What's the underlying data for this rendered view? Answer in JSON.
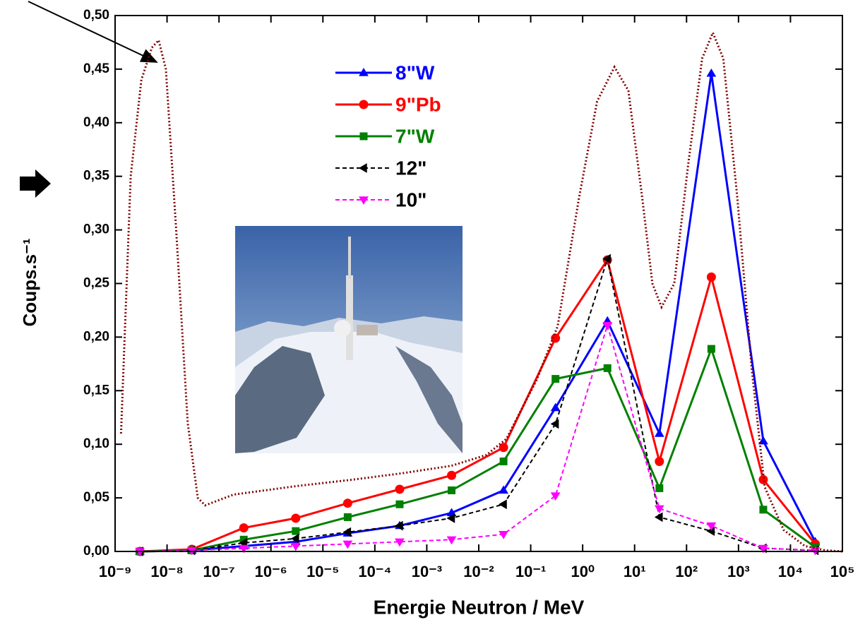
{
  "chart_data": {
    "type": "line",
    "xlabel": "Energie Neutron / MeV",
    "ylabel": "Coups.s⁻¹",
    "log_x": true,
    "xlim": [
      1e-09,
      100000
    ],
    "xticks": [
      {
        "value": 1e-09,
        "label": "10⁻⁹"
      },
      {
        "value": 1e-08,
        "label": "10⁻⁸"
      },
      {
        "value": 1e-07,
        "label": "10⁻⁷"
      },
      {
        "value": 1e-06,
        "label": "10⁻⁶"
      },
      {
        "value": 1e-05,
        "label": "10⁻⁵"
      },
      {
        "value": 0.0001,
        "label": "10⁻⁴"
      },
      {
        "value": 0.001,
        "label": "10⁻³"
      },
      {
        "value": 0.01,
        "label": "10⁻²"
      },
      {
        "value": 0.1,
        "label": "10⁻¹"
      },
      {
        "value": 1,
        "label": "10⁰"
      },
      {
        "value": 10,
        "label": "10¹"
      },
      {
        "value": 100,
        "label": "10²"
      },
      {
        "value": 1000,
        "label": "10³"
      },
      {
        "value": 10000,
        "label": "10⁴"
      },
      {
        "value": 100000,
        "label": "10⁵"
      }
    ],
    "ylim": [
      0,
      0.5
    ],
    "yticks": [
      {
        "value": 0,
        "label": "0,00"
      },
      {
        "value": 0.05,
        "label": "0,05"
      },
      {
        "value": 0.1,
        "label": "0,10"
      },
      {
        "value": 0.15,
        "label": "0,15"
      },
      {
        "value": 0.2,
        "label": "0,20"
      },
      {
        "value": 0.25,
        "label": "0,25"
      },
      {
        "value": 0.3,
        "label": "0,30"
      },
      {
        "value": 0.35,
        "label": "0,35"
      },
      {
        "value": 0.4,
        "label": "0,40"
      },
      {
        "value": 0.45,
        "label": "0,45"
      },
      {
        "value": 0.5,
        "label": "0,50"
      }
    ],
    "x": [
      3e-09,
      3e-08,
      3e-07,
      3e-06,
      3e-05,
      0.0003,
      0.003,
      0.03,
      0.3,
      3,
      30,
      300,
      3000,
      30000
    ],
    "series": [
      {
        "name": "8\"W",
        "color": "#0000ff",
        "marker": "triangle-up",
        "line_style": "solid",
        "values": [
          0,
          0.001,
          0.005,
          0.009,
          0.017,
          0.024,
          0.036,
          0.057,
          0.134,
          0.215,
          0.11,
          0.446,
          0.103,
          0.009
        ]
      },
      {
        "name": "9\"Pb",
        "color": "#ff0000",
        "marker": "circle",
        "line_style": "solid",
        "values": [
          0,
          0.002,
          0.022,
          0.031,
          0.045,
          0.058,
          0.071,
          0.097,
          0.199,
          0.272,
          0.084,
          0.256,
          0.067,
          0.007
        ]
      },
      {
        "name": "7\"W",
        "color": "#008000",
        "marker": "square",
        "line_style": "solid",
        "values": [
          0,
          0.001,
          0.011,
          0.019,
          0.032,
          0.044,
          0.057,
          0.084,
          0.161,
          0.171,
          0.059,
          0.189,
          0.039,
          0.004
        ]
      },
      {
        "name": "12\"",
        "color": "#000000",
        "marker": "triangle-left",
        "line_style": "dashed",
        "values": [
          0,
          0.001,
          0.008,
          0.012,
          0.018,
          0.024,
          0.031,
          0.044,
          0.119,
          0.273,
          0.032,
          0.019,
          0.003,
          0.001
        ]
      },
      {
        "name": "10\"",
        "color": "#ff00ff",
        "marker": "triangle-down",
        "line_style": "dashed",
        "values": [
          0,
          0.001,
          0.003,
          0.005,
          0.007,
          0.009,
          0.011,
          0.016,
          0.052,
          0.211,
          0.04,
          0.024,
          0.003,
          0.001
        ]
      },
      {
        "color": "#800000",
        "line_style": "dotted",
        "x": [
          1.3e-09,
          2e-09,
          3.2e-09,
          5.1e-09,
          6.9e-09,
          9.5e-09,
          1.5e-08,
          2.5e-08,
          3.9e-08,
          5.4e-08,
          1.9e-07,
          3.1e-06,
          3.8e-05,
          0.00034,
          0.003,
          0.014,
          0.034,
          0.13,
          0.33,
          0.85,
          1.9,
          4.1,
          7.6,
          14,
          22,
          33,
          58,
          107,
          200,
          320,
          510,
          950,
          1800,
          3200,
          7400,
          19000,
          48000,
          100000
        ],
        "values": [
          0.11,
          0.35,
          0.44,
          0.47,
          0.477,
          0.45,
          0.3,
          0.12,
          0.05,
          0.043,
          0.053,
          0.061,
          0.067,
          0.073,
          0.08,
          0.09,
          0.105,
          0.16,
          0.21,
          0.33,
          0.42,
          0.452,
          0.43,
          0.33,
          0.25,
          0.228,
          0.25,
          0.36,
          0.46,
          0.484,
          0.46,
          0.33,
          0.17,
          0.06,
          0.02,
          0.005,
          0.001,
          0
        ]
      }
    ]
  }
}
